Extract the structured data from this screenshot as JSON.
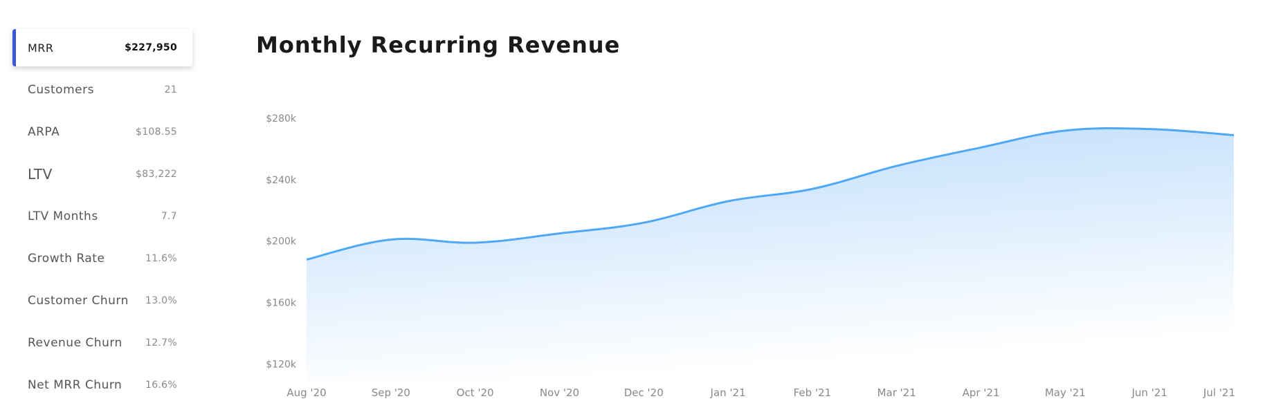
{
  "sidebar": {
    "items": [
      {
        "label": "MRR",
        "value": "$227,950",
        "active": true
      },
      {
        "label": "Customers",
        "value": "21"
      },
      {
        "label": "ARPA",
        "value": "$108.55"
      },
      {
        "label": "LTV",
        "value": "$83,222",
        "large": true
      },
      {
        "label": "LTV Months",
        "value": "7.7"
      },
      {
        "label": "Growth Rate",
        "value": "11.6%"
      },
      {
        "label": "Customer Churn",
        "value": "13.0%"
      },
      {
        "label": "Revenue Churn",
        "value": "12.7%"
      },
      {
        "label": "Net MRR Churn",
        "value": "16.6%"
      }
    ]
  },
  "chart": {
    "title": "Monthly Recurring Revenue"
  },
  "chart_data": {
    "type": "area",
    "title": "Monthly Recurring Revenue",
    "xlabel": "",
    "ylabel": "",
    "categories": [
      "Aug '20",
      "Sep '20",
      "Oct '20",
      "Nov '20",
      "Dec '20",
      "Jan '21",
      "Feb '21",
      "Mar '21",
      "Apr '21",
      "May '21",
      "Jun '21",
      "Jul '21"
    ],
    "series": [
      {
        "values": [
          188000,
          201000,
          199000,
          205000,
          212000,
          226000,
          234000,
          249000,
          261000,
          272000,
          273000,
          269000
        ]
      }
    ],
    "yticks": [
      "$120k",
      "$160k",
      "$200k",
      "$240k",
      "$280k"
    ],
    "ytick_values": [
      120000,
      160000,
      200000,
      240000,
      280000
    ],
    "ylim": [
      108000,
      285000
    ],
    "grid": false,
    "colors": {
      "line": "#4ea8f5",
      "fill_top": "#bcdcfb",
      "fill_bottom": "#ffffff"
    }
  },
  "accent_color": "#3a57d8"
}
